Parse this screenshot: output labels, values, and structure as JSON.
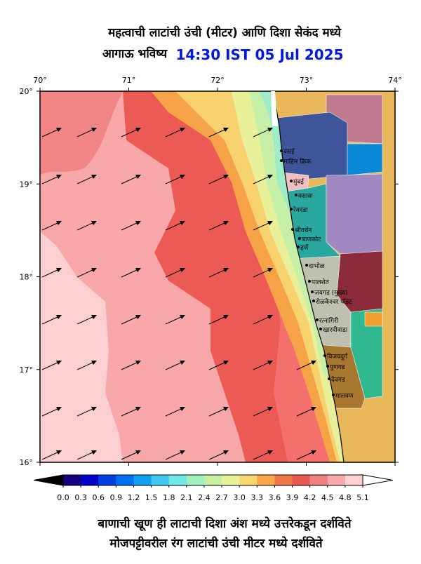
{
  "header": {
    "title": "महत्वाची लाटांची उंची (मीटर) आणि दिशा सेकंद मध्ये",
    "subtitle": "आगाऊ भविष्य",
    "time": "14:30 IST 05 Jul 2025"
  },
  "map": {
    "lon_ticks": [
      {
        "value": 70,
        "label": "70°"
      },
      {
        "value": 71,
        "label": "71°"
      },
      {
        "value": 72,
        "label": "72°"
      },
      {
        "value": 73,
        "label": "73°"
      },
      {
        "value": 74,
        "label": "74°"
      }
    ],
    "lat_ticks": [
      {
        "value": 20,
        "label": "20°"
      },
      {
        "value": 19,
        "label": "19°"
      },
      {
        "value": 18,
        "label": "18°"
      },
      {
        "value": 17,
        "label": "17°"
      },
      {
        "value": 16,
        "label": "16°"
      }
    ]
  },
  "places": [
    "वसई",
    "माहिम क्रिक",
    "मुंबई",
    "वसावा",
    "रेवदंडा",
    "श्रीवर्धन",
    "बाणकोट",
    "हर्णे",
    "दाभोळ",
    "पालशेत",
    "जयगड (मुख्य)",
    "रोळकेश्वर पॉइंट",
    "रत्नागिरी",
    "खारवीवाडा",
    "विजयदुर्ग",
    "पुणगड",
    "देवगड",
    "मालवण"
  ],
  "colorbar": {
    "ticks": [
      {
        "value": 0,
        "label": "0.0"
      },
      {
        "value": 0.3,
        "label": "0.3"
      },
      {
        "value": 0.6,
        "label": "0.6"
      },
      {
        "value": 0.9,
        "label": "0.9"
      },
      {
        "value": 1.2,
        "label": "1.2"
      },
      {
        "value": 1.5,
        "label": "1.5"
      },
      {
        "value": 1.8,
        "label": "1.8"
      },
      {
        "value": 2.1,
        "label": "2.1"
      },
      {
        "value": 2.4,
        "label": "2.4"
      },
      {
        "value": 2.7,
        "label": "2.7"
      },
      {
        "value": 3,
        "label": "3.0"
      },
      {
        "value": 3.3,
        "label": "3.3"
      },
      {
        "value": 3.6,
        "label": "3.6"
      },
      {
        "value": 3.9,
        "label": "3.9"
      },
      {
        "value": 4.2,
        "label": "4.2"
      },
      {
        "value": 4.5,
        "label": "4.5"
      },
      {
        "value": 4.8,
        "label": "4.8"
      },
      {
        "value": 5.1,
        "label": "5.1"
      }
    ],
    "colors": [
      "#150080",
      "#0000c8",
      "#0040e0",
      "#0070f0",
      "#10a0f0",
      "#40c8f0",
      "#70e8e8",
      "#a0f0c0",
      "#c8f0a0",
      "#e8f098",
      "#f8d870",
      "#f8a848",
      "#f07848",
      "#e85a50",
      "#f08080",
      "#f8a8a8",
      "#fcd0d0"
    ],
    "under_color": "#000000",
    "over_color": "#ffffff"
  },
  "footer": [
    "बाणाची खूण ही लाटाची दिशा अंश मध्ये उत्तरेकडून दर्शविते",
    "मोजपट्टीवरील रंग लाटांची उंची मीटर मध्ये दर्शविते"
  ]
}
